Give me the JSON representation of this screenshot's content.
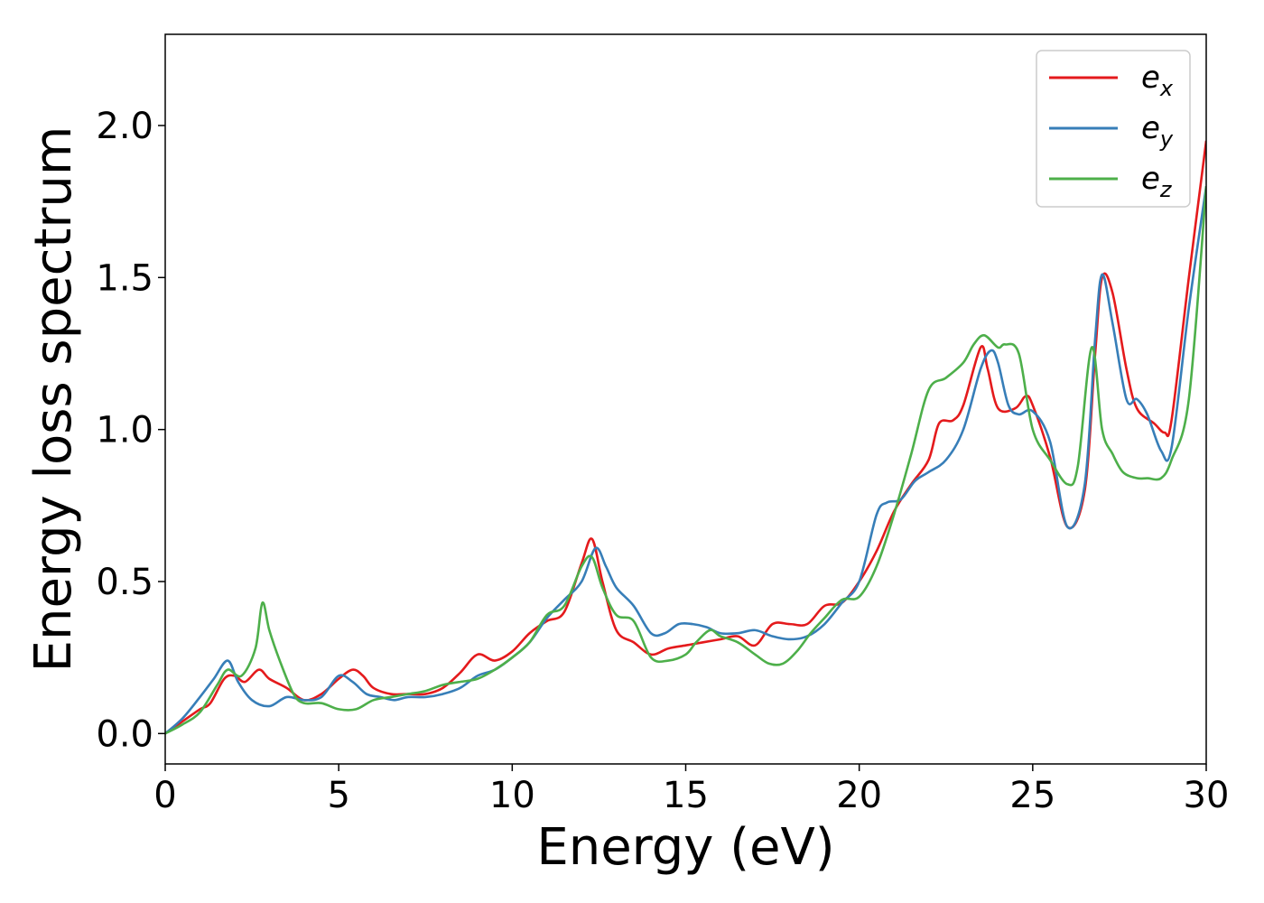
{
  "chart_data": {
    "type": "line",
    "title": "",
    "xlabel": "Energy (eV)",
    "ylabel": "Energy loss spectrum",
    "xlim": [
      0,
      30
    ],
    "ylim": [
      -0.1,
      2.3
    ],
    "xticks": [
      0,
      5,
      10,
      15,
      20,
      25,
      30
    ],
    "xtick_labels": [
      "0",
      "5",
      "10",
      "15",
      "20",
      "25",
      "30"
    ],
    "yticks": [
      0.0,
      0.5,
      1.0,
      1.5,
      2.0
    ],
    "ytick_labels": [
      "0.0",
      "0.5",
      "1.0",
      "1.5",
      "2.0"
    ],
    "grid": false,
    "legend": {
      "placement": "top-right",
      "entries": [
        {
          "base": "e",
          "sub": "x"
        },
        {
          "base": "e",
          "sub": "y"
        },
        {
          "base": "e",
          "sub": "z"
        }
      ]
    },
    "series": [
      {
        "color": "#e41a1c",
        "x": [
          0,
          0.5,
          1,
          1.3,
          1.7,
          2.0,
          2.3,
          2.7,
          3.0,
          3.5,
          4.0,
          4.5,
          5.0,
          5.4,
          5.7,
          6.0,
          6.5,
          7.0,
          7.5,
          8.0,
          8.5,
          9.0,
          9.5,
          10.0,
          10.5,
          11.0,
          11.5,
          12.0,
          12.3,
          12.6,
          13.0,
          13.5,
          14.0,
          14.5,
          15.0,
          15.5,
          16.0,
          16.5,
          17.0,
          17.5,
          18.0,
          18.5,
          19.0,
          19.5,
          20.0,
          20.5,
          21.0,
          21.5,
          22.0,
          22.3,
          22.7,
          23.0,
          23.5,
          23.7,
          24.0,
          24.5,
          24.8,
          25.0,
          25.5,
          26.0,
          26.5,
          26.8,
          27.0,
          27.3,
          27.7,
          28.0,
          28.5,
          28.8,
          29.0,
          29.5,
          30.0
        ],
        "y": [
          0,
          0.04,
          0.08,
          0.1,
          0.18,
          0.19,
          0.17,
          0.21,
          0.18,
          0.15,
          0.11,
          0.13,
          0.18,
          0.21,
          0.19,
          0.15,
          0.13,
          0.13,
          0.13,
          0.15,
          0.2,
          0.26,
          0.24,
          0.27,
          0.33,
          0.37,
          0.4,
          0.56,
          0.64,
          0.5,
          0.34,
          0.3,
          0.26,
          0.28,
          0.29,
          0.3,
          0.31,
          0.32,
          0.29,
          0.36,
          0.36,
          0.36,
          0.42,
          0.43,
          0.5,
          0.6,
          0.73,
          0.82,
          0.9,
          1.02,
          1.03,
          1.08,
          1.27,
          1.2,
          1.07,
          1.07,
          1.11,
          1.08,
          0.91,
          0.68,
          0.8,
          1.25,
          1.5,
          1.45,
          1.2,
          1.07,
          1.02,
          0.99,
          1.03,
          1.5,
          1.95
        ]
      },
      {
        "color": "#377eb8",
        "x": [
          0,
          0.5,
          1,
          1.4,
          1.8,
          2.1,
          2.5,
          3.0,
          3.5,
          4.0,
          4.5,
          5.0,
          5.4,
          5.8,
          6.2,
          6.6,
          7.0,
          7.5,
          8.0,
          8.5,
          9.0,
          9.5,
          10.0,
          10.5,
          11.0,
          11.5,
          12.0,
          12.4,
          12.7,
          13.0,
          13.5,
          14.0,
          14.4,
          14.8,
          15.2,
          15.6,
          16.0,
          16.5,
          17.0,
          17.5,
          18.0,
          18.5,
          19.0,
          19.5,
          20.0,
          20.5,
          20.8,
          21.2,
          21.6,
          22.0,
          22.5,
          23.0,
          23.5,
          23.8,
          24.0,
          24.3,
          24.6,
          25.0,
          25.5,
          26.0,
          26.5,
          26.8,
          27.0,
          27.3,
          27.7,
          28.0,
          28.3,
          28.7,
          29.0,
          29.5,
          30.0
        ],
        "y": [
          0,
          0.05,
          0.12,
          0.18,
          0.24,
          0.17,
          0.11,
          0.09,
          0.12,
          0.11,
          0.12,
          0.19,
          0.17,
          0.13,
          0.12,
          0.11,
          0.12,
          0.12,
          0.13,
          0.15,
          0.19,
          0.21,
          0.25,
          0.3,
          0.38,
          0.44,
          0.5,
          0.61,
          0.55,
          0.48,
          0.42,
          0.33,
          0.33,
          0.36,
          0.36,
          0.35,
          0.33,
          0.33,
          0.34,
          0.32,
          0.31,
          0.32,
          0.36,
          0.43,
          0.5,
          0.72,
          0.76,
          0.77,
          0.83,
          0.86,
          0.9,
          1.0,
          1.2,
          1.26,
          1.22,
          1.08,
          1.05,
          1.06,
          0.96,
          0.68,
          0.82,
          1.3,
          1.51,
          1.35,
          1.1,
          1.1,
          1.05,
          0.93,
          0.94,
          1.4,
          1.8
        ]
      },
      {
        "color": "#4daf4a",
        "x": [
          0,
          0.5,
          1,
          1.5,
          1.8,
          2.2,
          2.6,
          2.8,
          3.0,
          3.3,
          3.7,
          4.0,
          4.5,
          5.0,
          5.5,
          6.0,
          6.5,
          7.0,
          7.5,
          8.0,
          8.5,
          9.0,
          9.5,
          10.0,
          10.5,
          11.0,
          11.5,
          12.0,
          12.3,
          12.6,
          13.0,
          13.5,
          14.0,
          14.5,
          15.0,
          15.3,
          15.7,
          16.0,
          16.5,
          17.0,
          17.4,
          17.8,
          18.2,
          18.6,
          19.0,
          19.5,
          20.0,
          20.5,
          21.0,
          21.5,
          22.0,
          22.5,
          23.0,
          23.3,
          23.6,
          24.0,
          24.2,
          24.6,
          25.0,
          25.5,
          26.0,
          26.3,
          26.7,
          27.0,
          27.3,
          27.6,
          28.0,
          28.3,
          28.7,
          29.0,
          29.5,
          30.0
        ],
        "y": [
          0,
          0.03,
          0.07,
          0.16,
          0.21,
          0.19,
          0.28,
          0.43,
          0.34,
          0.24,
          0.13,
          0.1,
          0.1,
          0.08,
          0.08,
          0.11,
          0.12,
          0.13,
          0.14,
          0.16,
          0.17,
          0.18,
          0.21,
          0.25,
          0.3,
          0.39,
          0.42,
          0.55,
          0.58,
          0.48,
          0.39,
          0.37,
          0.25,
          0.24,
          0.26,
          0.3,
          0.34,
          0.32,
          0.3,
          0.26,
          0.23,
          0.23,
          0.27,
          0.33,
          0.38,
          0.44,
          0.45,
          0.55,
          0.72,
          0.92,
          1.13,
          1.17,
          1.22,
          1.28,
          1.31,
          1.27,
          1.28,
          1.25,
          1.0,
          0.9,
          0.82,
          0.88,
          1.27,
          1.0,
          0.92,
          0.86,
          0.84,
          0.84,
          0.84,
          0.9,
          1.1,
          1.8
        ]
      }
    ]
  }
}
